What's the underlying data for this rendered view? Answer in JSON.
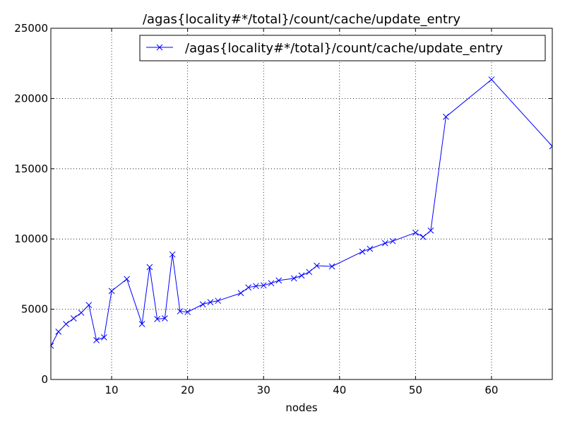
{
  "chart_data": {
    "type": "line",
    "title": "/agas{locality#*/total}/count/cache/update_entry",
    "xlabel": "nodes",
    "ylabel": "",
    "xlim": [
      2,
      68
    ],
    "ylim": [
      0,
      25000
    ],
    "xticks": [
      10,
      20,
      30,
      40,
      50,
      60
    ],
    "yticks": [
      0,
      5000,
      10000,
      15000,
      20000,
      25000
    ],
    "grid": true,
    "legend_position": "top-right",
    "series": [
      {
        "name": "/agas{locality#*/total}/count/cache/update_entry",
        "color": "#0000ff",
        "marker": "x",
        "x": [
          2,
          3,
          4,
          5,
          6,
          7,
          8,
          9,
          10,
          12,
          14,
          15,
          16,
          17,
          18,
          19,
          20,
          22,
          23,
          24,
          27,
          28,
          29,
          30,
          31,
          32,
          34,
          35,
          36,
          37,
          39,
          43,
          44,
          46,
          47,
          50,
          51,
          52,
          54,
          60,
          68
        ],
        "y": [
          2400,
          3400,
          3950,
          4350,
          4750,
          5300,
          2800,
          3000,
          6300,
          7150,
          3950,
          8000,
          4300,
          4350,
          8900,
          4850,
          4800,
          5350,
          5500,
          5600,
          6150,
          6550,
          6650,
          6700,
          6850,
          7050,
          7200,
          7400,
          7650,
          8100,
          8050,
          9100,
          9300,
          9700,
          9850,
          10450,
          10150,
          10600,
          18700,
          21350,
          16600
        ]
      }
    ]
  }
}
